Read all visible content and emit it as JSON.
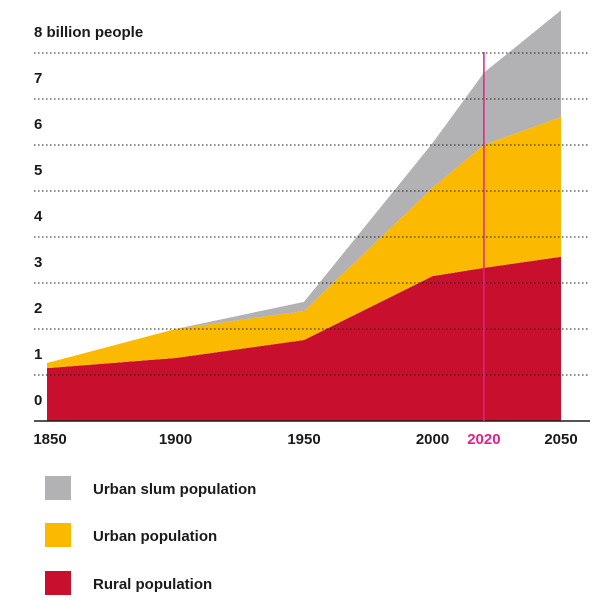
{
  "chart_data": {
    "type": "stacked_area",
    "x": [
      1850,
      1900,
      1950,
      2000,
      2020,
      2050
    ],
    "series": [
      {
        "name": "Rural population",
        "color": "#c8102e",
        "values": [
          1.15,
          1.37,
          1.76,
          3.15,
          3.33,
          3.57
        ]
      },
      {
        "name": "Urban population",
        "color": "#fbb900",
        "values": [
          0.11,
          0.63,
          0.63,
          1.92,
          2.67,
          3.04
        ]
      },
      {
        "name": "Urban slum population",
        "color": "#b2b2b4",
        "values": [
          0,
          0,
          0.2,
          0.97,
          1.57,
          2.32
        ]
      }
    ],
    "xlim": [
      1850,
      2050
    ],
    "xticks": [
      1850,
      1900,
      1950,
      2000,
      2020,
      2050
    ],
    "ylim": [
      0,
      9
    ],
    "yticks": [
      0,
      1,
      2,
      3,
      4,
      5,
      6,
      7,
      {
        "value": 8,
        "label": "8 billion people"
      }
    ],
    "grid": true,
    "highlight": {
      "x": 2020,
      "color": "#e0218a"
    }
  }
}
